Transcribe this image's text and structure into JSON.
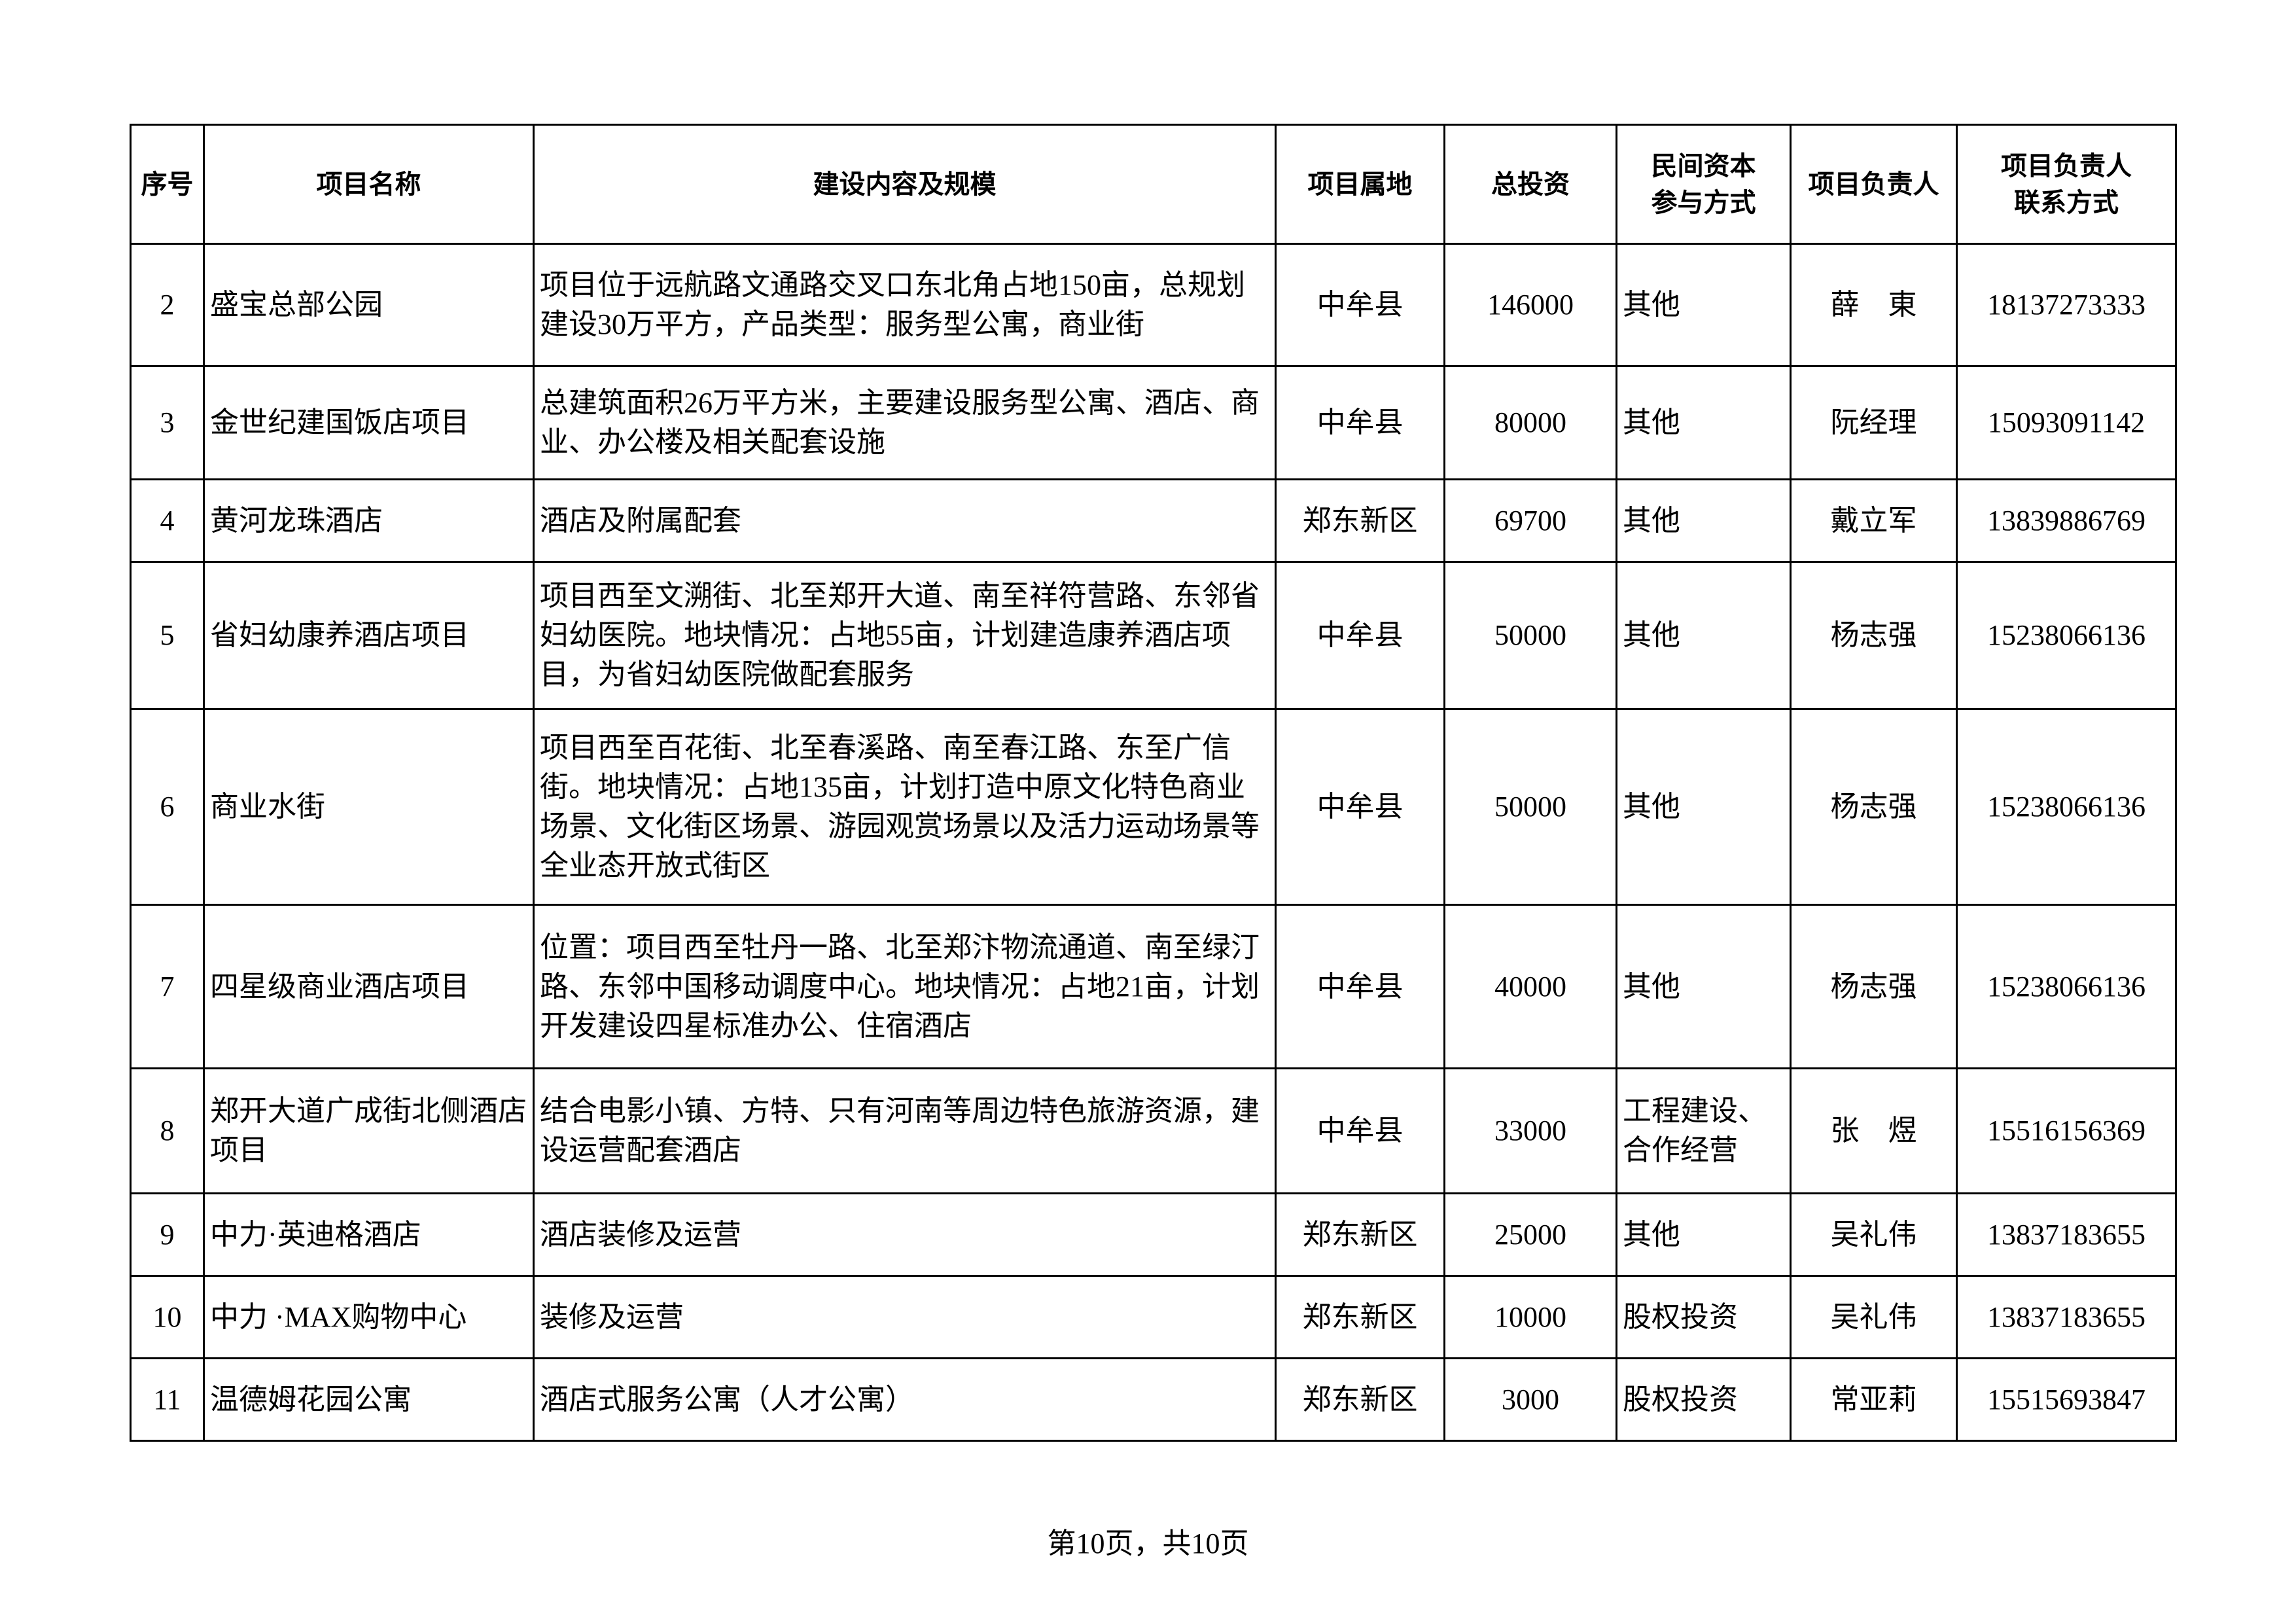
{
  "table": {
    "headers": [
      "序号",
      "项目名称",
      "建设内容及规模",
      "项目属地",
      "总投资",
      "民间资本\n参与方式",
      "项目负责人",
      "项目负责人\n联系方式"
    ],
    "rows": [
      {
        "no": "2",
        "name": "盛宝总部公园",
        "content": "项目位于远航路文通路交叉口东北角占地150亩，总规划建设30万平方，产品类型：服务型公寓，商业街",
        "location": "中牟县",
        "investment": "146000",
        "mode": "其他",
        "manager": "薛　東",
        "contact": "18137273333"
      },
      {
        "no": "3",
        "name": "金世纪建国饭店项目",
        "content": "总建筑面积26万平方米，主要建设服务型公寓、酒店、商业、办公楼及相关配套设施",
        "location": "中牟县",
        "investment": "80000",
        "mode": "其他",
        "manager": "阮经理",
        "contact": "15093091142"
      },
      {
        "no": "4",
        "name": "黄河龙珠酒店",
        "content": "酒店及附属配套",
        "location": "郑东新区",
        "investment": "69700",
        "mode": "其他",
        "manager": "戴立军",
        "contact": "13839886769"
      },
      {
        "no": "5",
        "name": "省妇幼康养酒店项目",
        "content": "项目西至文溯街、北至郑开大道、南至祥符营路、东邻省妇幼医院。地块情况：占地55亩，计划建造康养酒店项目，为省妇幼医院做配套服务",
        "location": "中牟县",
        "investment": "50000",
        "mode": "其他",
        "manager": "杨志强",
        "contact": "15238066136"
      },
      {
        "no": "6",
        "name": "商业水街",
        "content": "项目西至百花街、北至春溪路、南至春江路、东至广信街。地块情况：占地135亩，计划打造中原文化特色商业场景、文化街区场景、游园观赏场景以及活力运动场景等全业态开放式街区",
        "location": "中牟县",
        "investment": "50000",
        "mode": "其他",
        "manager": "杨志强",
        "contact": "15238066136"
      },
      {
        "no": "7",
        "name": "四星级商业酒店项目",
        "content": "位置：项目西至牡丹一路、北至郑汴物流通道、南至绿汀路、东邻中国移动调度中心。地块情况：占地21亩，计划开发建设四星标准办公、住宿酒店",
        "location": "中牟县",
        "investment": "40000",
        "mode": "其他",
        "manager": "杨志强",
        "contact": "15238066136"
      },
      {
        "no": "8",
        "name": "郑开大道广成街北侧酒店项目",
        "content": "结合电影小镇、方特、只有河南等周边特色旅游资源，建设运营配套酒店",
        "location": "中牟县",
        "investment": "33000",
        "mode": "工程建设、合作经营",
        "manager": "张　煜",
        "contact": "15516156369"
      },
      {
        "no": "9",
        "name": "中力·英迪格酒店",
        "content": "酒店装修及运营",
        "location": "郑东新区",
        "investment": "25000",
        "mode": "其他",
        "manager": "吴礼伟",
        "contact": "13837183655"
      },
      {
        "no": "10",
        "name": "中力 ·MAX购物中心",
        "content": "装修及运营",
        "location": "郑东新区",
        "investment": "10000",
        "mode": "股权投资",
        "manager": "吴礼伟",
        "contact": "13837183655"
      },
      {
        "no": "11",
        "name": "温德姆花园公寓",
        "content": "酒店式服务公寓（人才公寓）",
        "location": "郑东新区",
        "investment": "3000",
        "mode": "股权投资",
        "manager": "常亚莉",
        "contact": "15515693847"
      }
    ]
  },
  "footer": {
    "page_label": "第10页，共10页"
  }
}
